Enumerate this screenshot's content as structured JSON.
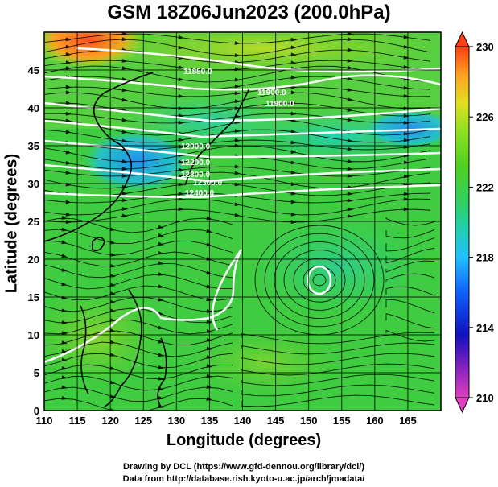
{
  "title": "GSM 18Z06Jun2023 (200.0hPa)",
  "x_axis": {
    "label": "Longitude (degrees)",
    "ticks": [
      "110",
      "115",
      "120",
      "125",
      "130",
      "135",
      "140",
      "145",
      "150",
      "155",
      "160",
      "165"
    ],
    "range": [
      110,
      170
    ]
  },
  "y_axis": {
    "label": "Latitude  (degrees)",
    "ticks": [
      "0",
      "5",
      "10",
      "15",
      "20",
      "25",
      "30",
      "35",
      "40",
      "45"
    ],
    "range": [
      0,
      50
    ]
  },
  "colorbar": {
    "ticks": [
      "210",
      "214",
      "218",
      "222",
      "226",
      "230"
    ],
    "range": [
      210,
      230
    ],
    "colors": [
      "#e040c0",
      "#8020c0",
      "#1010c0",
      "#1060ff",
      "#20c0ff",
      "#20d0b0",
      "#30d060",
      "#50d020",
      "#90e020",
      "#e0e020",
      "#ffa020",
      "#ff4010"
    ]
  },
  "contour_labels": [
    "11850.0",
    "11900.0",
    "11900.0",
    "12000.0",
    "12200.0",
    "12300.0",
    "12300.0",
    "12400.0"
  ],
  "credits": {
    "line1": "Drawing by DCL (https://www.gfd-dennou.org/library/dcl/)",
    "line2": "Data from http://database.rish.kyoto-u.ac.jp/arch/jmadata/"
  }
}
